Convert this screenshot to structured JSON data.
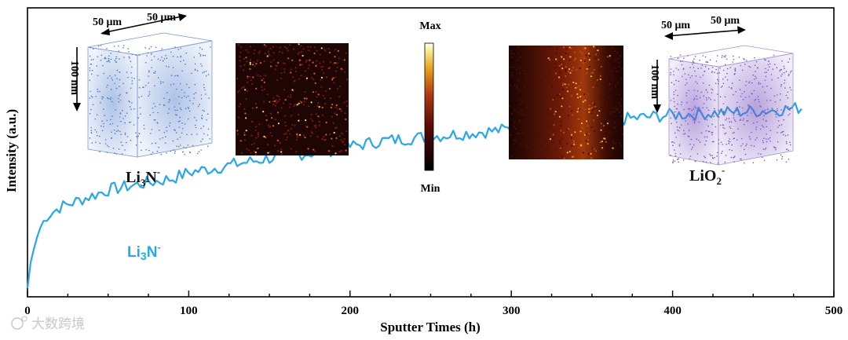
{
  "chart_data": {
    "type": "line",
    "title": "",
    "xlabel": "Sputter Times (h)",
    "ylabel": "Intensity (a.u.)",
    "xlim": [
      0,
      500
    ],
    "ylim": [
      0,
      1
    ],
    "xticks": [
      0,
      100,
      200,
      300,
      400,
      500
    ],
    "tick_labels": [
      "0",
      "100",
      "200",
      "300",
      "400",
      "500"
    ],
    "series": [
      {
        "name": "Li3N-",
        "label_main": "Li",
        "label_sub": "3",
        "label_base": "N",
        "label_sup": "-",
        "color": "#29a6e8",
        "x": [
          0,
          2,
          5,
          8,
          12,
          20,
          30,
          40,
          50,
          60,
          70,
          80,
          90,
          100,
          120,
          140,
          160,
          180,
          200,
          220,
          240,
          260,
          280,
          300,
          320,
          340,
          360,
          380,
          400,
          420,
          440,
          460,
          470,
          480
        ],
        "y": [
          0.03,
          0.12,
          0.19,
          0.24,
          0.28,
          0.31,
          0.33,
          0.35,
          0.37,
          0.38,
          0.39,
          0.4,
          0.41,
          0.43,
          0.45,
          0.47,
          0.49,
          0.5,
          0.52,
          0.54,
          0.55,
          0.56,
          0.57,
          0.58,
          0.59,
          0.6,
          0.61,
          0.62,
          0.63,
          0.635,
          0.64,
          0.645,
          0.65,
          0.655
        ]
      }
    ]
  },
  "insets": {
    "left_cube": {
      "dim_a": "50 μm",
      "dim_b": "50 μm",
      "depth": "100 nm",
      "color": "#4a78c8",
      "species_main": "Li",
      "species_sub": "3",
      "species_base": "N",
      "species_sup": "-"
    },
    "right_cube": {
      "dim_a": "50 μm",
      "dim_b": "50 μm",
      "depth": "100 nm",
      "color": "#7a55c0",
      "species_main": "LiO",
      "species_sub": "2",
      "species_sup": "-"
    },
    "colorbar": {
      "max_label": "Max",
      "min_label": "Min"
    }
  },
  "watermark": {
    "text": "大数跨境"
  }
}
